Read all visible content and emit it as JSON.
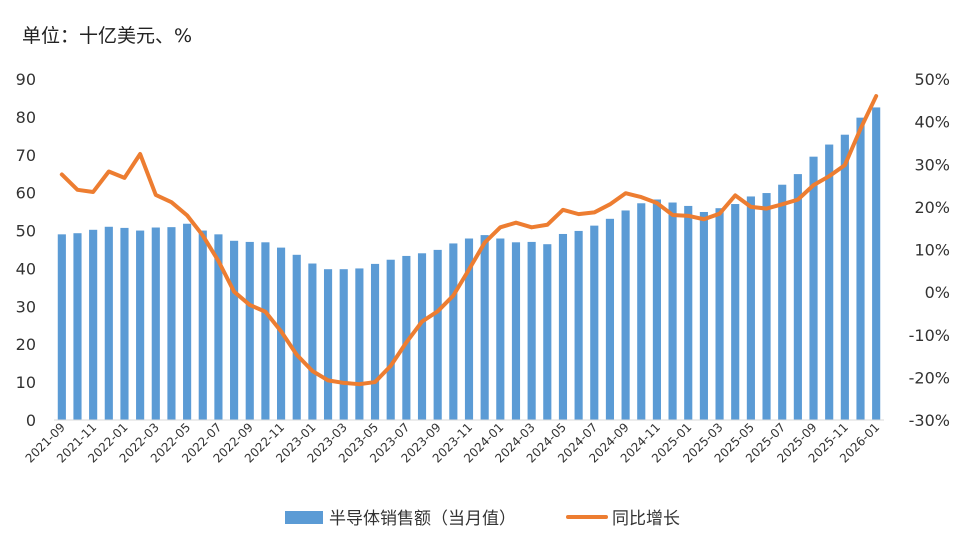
{
  "unit_label": "单位：十亿美元、%",
  "colors": {
    "bar": "#5b9bd5",
    "line": "#ed7d31",
    "axis": "#d9d9d9",
    "text": "#333333"
  },
  "chart_data": {
    "type": "bar+line",
    "title": "",
    "unit": "单位：十亿美元、%",
    "categories": [
      "2021-09",
      "2021-10",
      "2021-11",
      "2021-12",
      "2022-01",
      "2022-02",
      "2022-03",
      "2022-04",
      "2022-05",
      "2022-06",
      "2022-07",
      "2022-08",
      "2022-09",
      "2022-10",
      "2022-11",
      "2022-12",
      "2023-01",
      "2023-02",
      "2023-03",
      "2023-04",
      "2023-05",
      "2023-06",
      "2023-07",
      "2023-08",
      "2023-09",
      "2023-10",
      "2023-11",
      "2023-12",
      "2024-01",
      "2024-02",
      "2024-03",
      "2024-04",
      "2024-05",
      "2024-06",
      "2024-07",
      "2024-08",
      "2024-09",
      "2024-10",
      "2024-11",
      "2024-12",
      "2025-01",
      "2025-02",
      "2025-03",
      "2025-04",
      "2025-05",
      "2025-06",
      "2025-07",
      "2025-08",
      "2025-09",
      "2025-10",
      "2025-11",
      "2025-12",
      "2026-01"
    ],
    "x_tick_labels": [
      "2021-09",
      "2021-11",
      "2022-01",
      "2022-03",
      "2022-05",
      "2022-07",
      "2022-09",
      "2022-11",
      "2023-01",
      "2023-03",
      "2023-05",
      "2023-07",
      "2023-09",
      "2023-11",
      "2024-01",
      "2024-03",
      "2024-05",
      "2024-07",
      "2024-09",
      "2024-11",
      "2025-01",
      "2025-03",
      "2025-05",
      "2025-07",
      "2025-09",
      "2025-11",
      "2026-01"
    ],
    "series": [
      {
        "name": "半导体销售额（当月值）",
        "type": "bar",
        "axis": "left",
        "values": [
          49.0,
          49.3,
          50.2,
          51.0,
          50.7,
          50.0,
          50.8,
          50.9,
          51.8,
          50.0,
          49.0,
          47.3,
          47.0,
          46.9,
          45.5,
          43.6,
          41.3,
          39.8,
          39.8,
          40.0,
          41.2,
          42.3,
          43.3,
          44.0,
          44.9,
          46.6,
          47.9,
          48.8,
          47.9,
          46.9,
          47.0,
          46.4,
          49.1,
          49.9,
          51.3,
          53.1,
          55.3,
          57.2,
          58.2,
          57.4,
          56.5,
          54.9,
          55.9,
          57.0,
          59.0,
          59.9,
          62.1,
          64.9,
          69.5,
          72.7,
          75.3,
          79.8,
          82.5
        ]
      },
      {
        "name": "同比增长",
        "type": "line",
        "axis": "right",
        "values": [
          27.6,
          24.0,
          23.5,
          28.3,
          26.8,
          32.4,
          22.8,
          21.1,
          18.0,
          13.3,
          7.3,
          0.1,
          -3.0,
          -4.6,
          -9.2,
          -14.7,
          -18.5,
          -20.7,
          -21.3,
          -21.6,
          -21.1,
          -17.3,
          -11.8,
          -6.9,
          -4.5,
          -0.8,
          5.3,
          11.6,
          15.2,
          16.3,
          15.2,
          15.8,
          19.3,
          18.3,
          18.7,
          20.6,
          23.2,
          22.3,
          20.9,
          18.1,
          17.9,
          17.1,
          18.4,
          22.7,
          20.0,
          19.6,
          20.6,
          21.7,
          25.1,
          27.2,
          29.8,
          38.3,
          46.0
        ]
      }
    ],
    "y_left": {
      "min": 0,
      "max": 90,
      "step": 10,
      "ticks": [
        "0",
        "10",
        "20",
        "30",
        "40",
        "50",
        "60",
        "70",
        "80",
        "90"
      ]
    },
    "y_right": {
      "min": -30,
      "max": 50,
      "step": 10,
      "ticks": [
        "-30%",
        "-20%",
        "-10%",
        "0%",
        "10%",
        "20%",
        "30%",
        "40%",
        "50%"
      ]
    },
    "legend": [
      "半导体销售额（当月值）",
      "同比增长"
    ],
    "legend_position": "bottom",
    "grid": false
  }
}
